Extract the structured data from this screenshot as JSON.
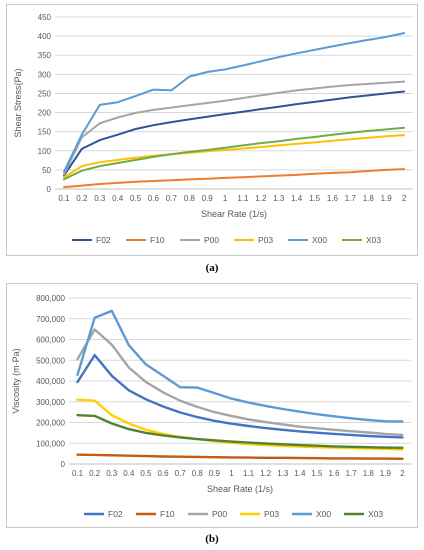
{
  "chart_data": [
    {
      "type": "line",
      "xlabel": "Shear Rate (1/s)",
      "ylabel": "Shear Stress(Pa)",
      "ylim": [
        0,
        450
      ],
      "yticks": [
        "0",
        "50",
        "100",
        "150",
        "200",
        "250",
        "300",
        "350",
        "400",
        "450"
      ],
      "grid": true,
      "legend": "bottom",
      "categories": [
        "0.1",
        "0.2",
        "0.3",
        "0.4",
        "0.5",
        "0.6",
        "0.7",
        "0.8",
        "0.9",
        "1",
        "1.1",
        "1.2",
        "1.3",
        "1.4",
        "1.5",
        "1.6",
        "1.7",
        "1.8",
        "1.9",
        "2"
      ],
      "series": [
        {
          "name": "F02",
          "color": "#2f5597",
          "values": [
            35,
            105,
            128,
            142,
            157,
            167,
            175,
            182,
            189,
            196,
            202,
            209,
            215,
            222,
            228,
            234,
            240,
            245,
            250,
            255
          ]
        },
        {
          "name": "F10",
          "color": "#ed7d31",
          "values": [
            5,
            9,
            13,
            16,
            19,
            21,
            23,
            25,
            27,
            29,
            31,
            33,
            35,
            37,
            40,
            42,
            44,
            47,
            50,
            52
          ]
        },
        {
          "name": "P00",
          "color": "#a5a5a5",
          "values": [
            38,
            135,
            172,
            187,
            199,
            207,
            213,
            219,
            225,
            231,
            238,
            245,
            252,
            258,
            263,
            268,
            272,
            275,
            278,
            281
          ]
        },
        {
          "name": "P03",
          "color": "#ffc000",
          "values": [
            30,
            60,
            70,
            76,
            82,
            87,
            91,
            95,
            99,
            102,
            106,
            110,
            114,
            118,
            122,
            126,
            130,
            134,
            138,
            141
          ]
        },
        {
          "name": "X00",
          "color": "#5b9bd5",
          "values": [
            45,
            142,
            220,
            227,
            243,
            260,
            258,
            294,
            306,
            313,
            323,
            334,
            345,
            355,
            364,
            373,
            382,
            390,
            398,
            408
          ]
        },
        {
          "name": "X03",
          "color": "#70ad47",
          "values": [
            25,
            48,
            60,
            68,
            76,
            84,
            91,
            97,
            102,
            108,
            114,
            120,
            125,
            131,
            136,
            142,
            147,
            152,
            156,
            160
          ]
        }
      ]
    },
    {
      "type": "line",
      "xlabel": "Shear Rate (1/s)",
      "ylabel": "Viscosity (m·Pa)",
      "ylim": [
        0,
        800000
      ],
      "yticks": [
        "0",
        "100,000",
        "200,000",
        "300,000",
        "400,000",
        "500,000",
        "600,000",
        "700,000",
        "800,000"
      ],
      "grid": true,
      "legend": "bottom",
      "categories": [
        "0.1",
        "0.2",
        "0.3",
        "0.4",
        "0.5",
        "0.6",
        "0.7",
        "0.8",
        "0.9",
        "1",
        "1.1",
        "1.2",
        "1.3",
        "1.4",
        "1.5",
        "1.6",
        "1.7",
        "1.8",
        "1.9",
        "2"
      ],
      "series": [
        {
          "name": "F02",
          "color": "#4472c4",
          "values": [
            395000,
            525000,
            425000,
            355000,
            312000,
            277000,
            248000,
            226000,
            208000,
            194000,
            183000,
            173000,
            165000,
            157000,
            151000,
            145000,
            140000,
            135000,
            131000,
            128000
          ]
        },
        {
          "name": "F10",
          "color": "#c55a11",
          "values": [
            45000,
            44000,
            42000,
            40000,
            38000,
            36000,
            35000,
            34000,
            33000,
            32000,
            31000,
            30000,
            30000,
            29000,
            28000,
            27000,
            27000,
            26000,
            26000,
            25000
          ]
        },
        {
          "name": "P00",
          "color": "#a5a5a5",
          "values": [
            505000,
            648000,
            575000,
            465000,
            395000,
            345000,
            305000,
            275000,
            250000,
            232000,
            215000,
            202000,
            191000,
            180000,
            172000,
            165000,
            158000,
            152000,
            145000,
            140000
          ]
        },
        {
          "name": "P03",
          "color": "#ffd000",
          "values": [
            310000,
            305000,
            235000,
            195000,
            165000,
            145000,
            130000,
            120000,
            110000,
            102000,
            96000,
            91000,
            87000,
            84000,
            81000,
            79000,
            77000,
            75000,
            73000,
            70000
          ]
        },
        {
          "name": "X00",
          "color": "#5b9bd5",
          "values": [
            430000,
            705000,
            738000,
            573000,
            480000,
            425000,
            370000,
            368000,
            342000,
            315000,
            296000,
            280000,
            265000,
            252000,
            240000,
            230000,
            220000,
            212000,
            206000,
            205000
          ]
        },
        {
          "name": "X03",
          "color": "#548235",
          "values": [
            235000,
            232000,
            195000,
            168000,
            150000,
            138000,
            128000,
            120000,
            114000,
            108000,
            103000,
            99000,
            95000,
            91000,
            88000,
            85000,
            83000,
            81000,
            79000,
            78000
          ]
        }
      ]
    }
  ],
  "captions": {
    "a": "(a)",
    "b": "(b)"
  }
}
